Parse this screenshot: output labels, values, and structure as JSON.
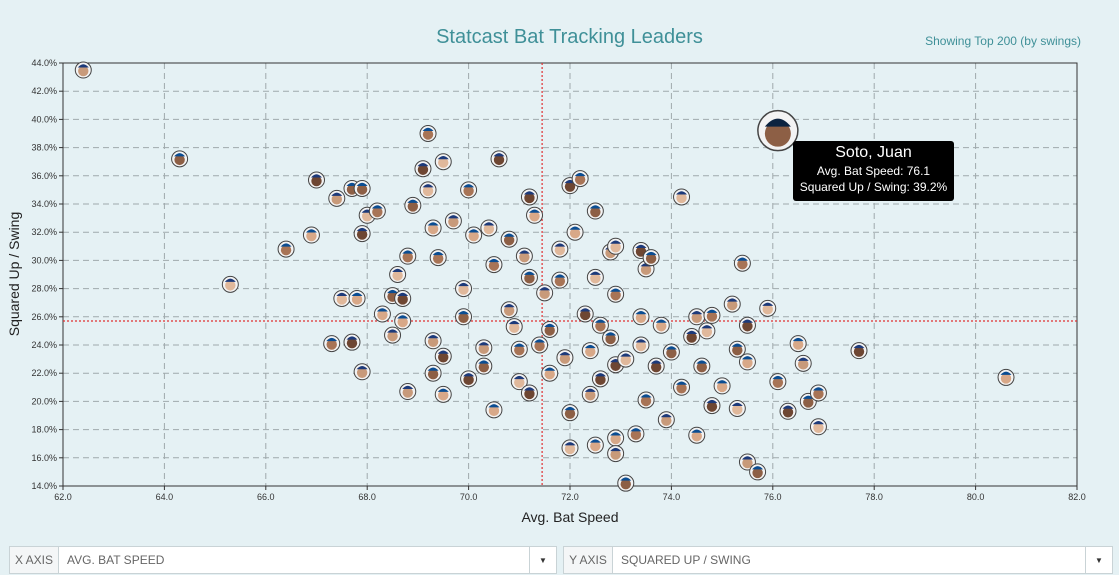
{
  "title": "Statcast Bat Tracking Leaders",
  "subtitle": "Showing Top 200 (by swings)",
  "controls": {
    "x_label": "X AXIS",
    "x_value": "AVG. BAT SPEED",
    "y_label": "Y AXIS",
    "y_value": "SQUARED UP / SWING"
  },
  "tooltip": {
    "name": "Soto, Juan",
    "line1": "Avg. Bat Speed: 76.1",
    "line2": "Squared Up / Swing: 39.2%"
  },
  "chart_data": {
    "type": "scatter",
    "title": "Statcast Bat Tracking Leaders",
    "xlabel": "Avg. Bat Speed",
    "ylabel": "Squared Up / Swing",
    "xlim": [
      62,
      82
    ],
    "ylim": [
      14,
      44
    ],
    "xticks": [
      "62.0",
      "64.0",
      "66.0",
      "68.0",
      "70.0",
      "72.0",
      "74.0",
      "76.0",
      "78.0",
      "80.0",
      "82.0"
    ],
    "yticks": [
      "14.0%",
      "16.0%",
      "18.0%",
      "20.0%",
      "22.0%",
      "24.0%",
      "26.0%",
      "28.0%",
      "30.0%",
      "32.0%",
      "34.0%",
      "36.0%",
      "38.0%",
      "40.0%",
      "42.0%",
      "44.0%"
    ],
    "grid": true,
    "reference_lines": {
      "x": 71.45,
      "y": 25.7
    },
    "highlight": {
      "name": "Soto, Juan",
      "x": 76.1,
      "y": 39.2
    },
    "points": [
      [
        62.4,
        43.5
      ],
      [
        64.3,
        37.2
      ],
      [
        65.3,
        28.3
      ],
      [
        66.4,
        30.8
      ],
      [
        67.0,
        35.7
      ],
      [
        66.9,
        31.8
      ],
      [
        67.4,
        34.4
      ],
      [
        67.7,
        35.1
      ],
      [
        67.5,
        27.3
      ],
      [
        67.3,
        24.1
      ],
      [
        67.7,
        24.2
      ],
      [
        67.8,
        27.3
      ],
      [
        67.9,
        22.1
      ],
      [
        67.9,
        35.1
      ],
      [
        68.0,
        33.2
      ],
      [
        68.2,
        33.5
      ],
      [
        67.9,
        31.9
      ],
      [
        68.3,
        26.2
      ],
      [
        68.5,
        24.7
      ],
      [
        68.5,
        27.5
      ],
      [
        68.6,
        29.0
      ],
      [
        68.8,
        30.3
      ],
      [
        68.7,
        27.3
      ],
      [
        68.7,
        25.7
      ],
      [
        68.8,
        20.7
      ],
      [
        68.9,
        33.9
      ],
      [
        69.2,
        35.0
      ],
      [
        69.2,
        39.0
      ],
      [
        69.1,
        36.5
      ],
      [
        69.3,
        32.3
      ],
      [
        69.3,
        24.3
      ],
      [
        69.3,
        22.0
      ],
      [
        69.5,
        37.0
      ],
      [
        69.4,
        30.2
      ],
      [
        69.5,
        23.2
      ],
      [
        69.5,
        20.5
      ],
      [
        69.7,
        32.8
      ],
      [
        69.9,
        26.0
      ],
      [
        69.9,
        28.0
      ],
      [
        70.0,
        35.0
      ],
      [
        70.0,
        21.6
      ],
      [
        70.1,
        31.8
      ],
      [
        70.3,
        23.8
      ],
      [
        70.3,
        22.5
      ],
      [
        70.4,
        32.3
      ],
      [
        70.5,
        29.7
      ],
      [
        70.6,
        37.2
      ],
      [
        70.5,
        19.4
      ],
      [
        70.8,
        26.5
      ],
      [
        70.8,
        31.5
      ],
      [
        70.9,
        25.3
      ],
      [
        71.0,
        23.7
      ],
      [
        71.2,
        34.5
      ],
      [
        71.3,
        33.2
      ],
      [
        71.1,
        30.3
      ],
      [
        71.2,
        28.8
      ],
      [
        71.0,
        21.4
      ],
      [
        71.4,
        24.0
      ],
      [
        71.2,
        20.6
      ],
      [
        71.6,
        22.0
      ],
      [
        71.5,
        27.7
      ],
      [
        71.6,
        25.1
      ],
      [
        71.8,
        30.8
      ],
      [
        71.8,
        28.6
      ],
      [
        72.0,
        35.3
      ],
      [
        72.1,
        32.0
      ],
      [
        71.9,
        23.1
      ],
      [
        72.0,
        19.2
      ],
      [
        72.0,
        16.7
      ],
      [
        72.2,
        35.8
      ],
      [
        72.3,
        26.2
      ],
      [
        72.4,
        23.6
      ],
      [
        72.4,
        20.5
      ],
      [
        72.5,
        33.5
      ],
      [
        72.5,
        28.8
      ],
      [
        72.6,
        25.4
      ],
      [
        72.6,
        21.6
      ],
      [
        72.5,
        16.9
      ],
      [
        72.8,
        30.6
      ],
      [
        72.8,
        24.5
      ],
      [
        72.9,
        31.0
      ],
      [
        72.9,
        27.6
      ],
      [
        72.9,
        22.6
      ],
      [
        72.9,
        17.4
      ],
      [
        72.9,
        16.3
      ],
      [
        73.1,
        14.2
      ],
      [
        73.1,
        23.0
      ],
      [
        73.3,
        17.7
      ],
      [
        73.4,
        30.7
      ],
      [
        73.4,
        26.0
      ],
      [
        73.5,
        29.4
      ],
      [
        73.6,
        30.2
      ],
      [
        73.4,
        24.0
      ],
      [
        73.5,
        20.1
      ],
      [
        73.7,
        22.5
      ],
      [
        73.8,
        25.4
      ],
      [
        73.9,
        18.7
      ],
      [
        74.0,
        23.5
      ],
      [
        74.2,
        34.5
      ],
      [
        74.2,
        21.0
      ],
      [
        74.4,
        24.6
      ],
      [
        74.5,
        17.6
      ],
      [
        74.5,
        26.0
      ],
      [
        74.6,
        22.5
      ],
      [
        74.7,
        25.0
      ],
      [
        74.8,
        26.1
      ],
      [
        74.8,
        19.7
      ],
      [
        75.0,
        21.1
      ],
      [
        75.2,
        26.9
      ],
      [
        75.3,
        23.7
      ],
      [
        75.3,
        19.5
      ],
      [
        75.4,
        29.8
      ],
      [
        75.5,
        25.4
      ],
      [
        75.5,
        22.8
      ],
      [
        75.5,
        15.7
      ],
      [
        75.7,
        15.0
      ],
      [
        75.9,
        26.6
      ],
      [
        76.1,
        21.4
      ],
      [
        76.3,
        19.3
      ],
      [
        76.5,
        24.1
      ],
      [
        76.6,
        22.7
      ],
      [
        76.7,
        20.0
      ],
      [
        76.9,
        18.2
      ],
      [
        76.9,
        20.6
      ],
      [
        77.7,
        23.6
      ],
      [
        80.6,
        21.7
      ]
    ]
  }
}
